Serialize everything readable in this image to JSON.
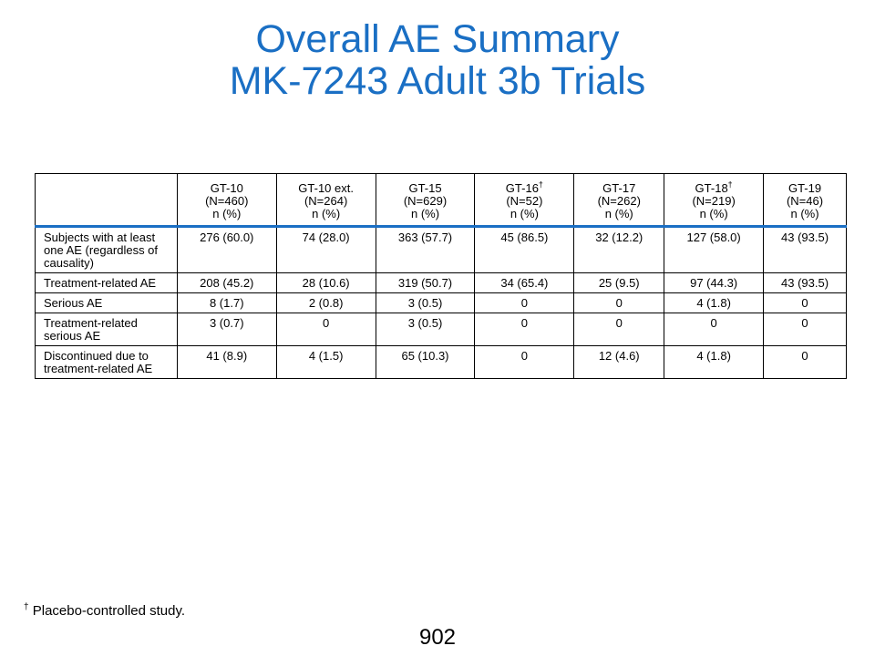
{
  "title": {
    "line1": "Overall AE Summary",
    "line2": "MK-7243 Adult 3b Trials"
  },
  "table": {
    "columns": [
      {
        "name": "GT-10",
        "n": "(N=460)",
        "unit": "n (%)",
        "dagger": ""
      },
      {
        "name": "GT-10 ext.",
        "n": "(N=264)",
        "unit": "n (%)",
        "dagger": ""
      },
      {
        "name": "GT-15",
        "n": "(N=629)",
        "unit": "n (%)",
        "dagger": ""
      },
      {
        "name": "GT-16",
        "n": "(N=52)",
        "unit": "n (%)",
        "dagger": "†"
      },
      {
        "name": "GT-17",
        "n": "(N=262)",
        "unit": "n (%)",
        "dagger": ""
      },
      {
        "name": "GT-18",
        "n": "(N=219)",
        "unit": "n (%)",
        "dagger": "†"
      },
      {
        "name": "GT-19",
        "n": "(N=46)",
        "unit": "n (%)",
        "dagger": ""
      }
    ],
    "rows": [
      {
        "label": "Subjects with at least one AE (regardless of causality)",
        "values": [
          "276 (60.0)",
          "74 (28.0)",
          "363 (57.7)",
          "45 (86.5)",
          "32 (12.2)",
          "127 (58.0)",
          "43 (93.5)"
        ]
      },
      {
        "label": "Treatment-related AE",
        "values": [
          "208 (45.2)",
          "28 (10.6)",
          "319 (50.7)",
          "34 (65.4)",
          "25 (9.5)",
          "97 (44.3)",
          "43 (93.5)"
        ]
      },
      {
        "label": "Serious AE",
        "values": [
          "8 (1.7)",
          "2 (0.8)",
          "3 (0.5)",
          "0",
          "0",
          "4 (1.8)",
          "0"
        ]
      },
      {
        "label": "Treatment-related serious AE",
        "values": [
          "3 (0.7)",
          "0",
          "3 (0.5)",
          "0",
          "0",
          "0",
          "0"
        ]
      },
      {
        "label": "Discontinued due to treatment-related AE",
        "values": [
          "41 (8.9)",
          "4 (1.5)",
          "65 (10.3)",
          "0",
          "12 (4.6)",
          "4 (1.8)",
          "0"
        ]
      }
    ]
  },
  "footnote": {
    "symbol": "†",
    "text": " Placebo-controlled study."
  },
  "page_number": "902",
  "colors": {
    "title": "#1a6fc4",
    "header_rule": "#1a6fc4"
  }
}
